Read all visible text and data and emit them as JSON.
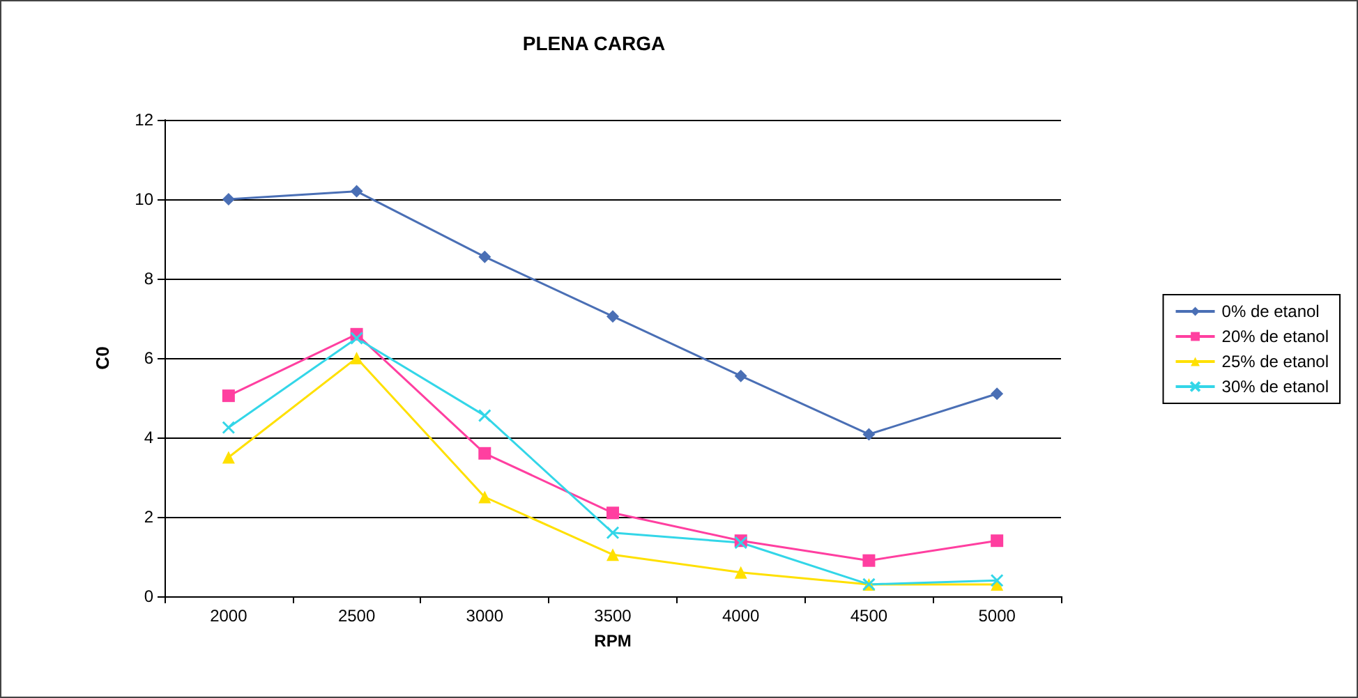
{
  "chart_data": {
    "type": "line",
    "title": "PLENA CARGA",
    "xlabel": "RPM",
    "ylabel": "C0",
    "categories": [
      "2000",
      "2500",
      "3000",
      "3500",
      "4000",
      "4500",
      "5000"
    ],
    "series": [
      {
        "name": "0% de etanol",
        "color": "#4a6fb5",
        "marker": "diamond",
        "values": [
          10.0,
          10.2,
          8.55,
          7.05,
          5.55,
          4.08,
          5.1
        ]
      },
      {
        "name": "20% de etanol",
        "color": "#ff3fa0",
        "marker": "square",
        "values": [
          5.05,
          6.6,
          3.6,
          2.1,
          1.4,
          0.9,
          1.4
        ]
      },
      {
        "name": "25% de etanol",
        "color": "#ffe000",
        "marker": "triangle",
        "values": [
          3.5,
          6.0,
          2.5,
          1.05,
          0.6,
          0.3,
          0.3
        ]
      },
      {
        "name": "30% de etanol",
        "color": "#33d6e8",
        "marker": "cross",
        "values": [
          4.25,
          6.5,
          4.55,
          1.6,
          1.35,
          0.3,
          0.4
        ]
      }
    ],
    "ylim": [
      0,
      12
    ],
    "yticks": [
      0,
      2,
      4,
      6,
      8,
      10,
      12
    ],
    "grid": "y",
    "legend": "right",
    "line_style": "solid"
  }
}
